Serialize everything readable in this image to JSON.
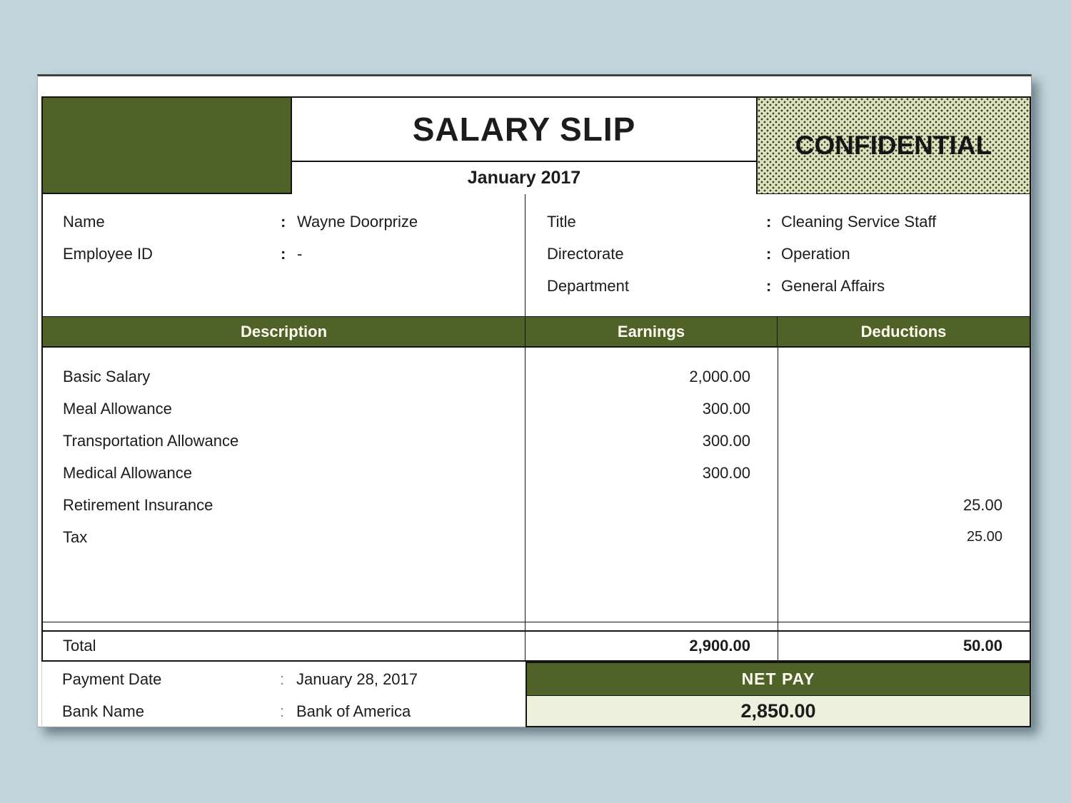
{
  "colors": {
    "canvas_bg": "#c1d6dc",
    "olive": "#4f6227",
    "confidential_bg": "#dce2bd",
    "netpay_value_bg": "#edf0dd",
    "header_text": "#fdfdf2",
    "ink": "#1c1c1c"
  },
  "header": {
    "title": "SALARY SLIP",
    "period": "January 2017",
    "confidential": "CONFIDENTIAL"
  },
  "employee": {
    "left": [
      {
        "label": "Name",
        "colon": ":",
        "value": "Wayne Doorprize"
      },
      {
        "label": "Employee ID",
        "colon": ":",
        "value": "-"
      }
    ],
    "right": [
      {
        "label": "Title",
        "colon": ":",
        "value": "Cleaning Service Staff"
      },
      {
        "label": "Directorate",
        "colon": ":",
        "value": "Operation"
      },
      {
        "label": "Department",
        "colon": ":",
        "value": "General Affairs"
      }
    ]
  },
  "table": {
    "headers": {
      "description": "Description",
      "earnings": "Earnings",
      "deductions": "Deductions"
    },
    "rows": [
      {
        "description": "Basic Salary",
        "earnings": "2,000.00",
        "deductions": ""
      },
      {
        "description": "Meal Allowance",
        "earnings": "300.00",
        "deductions": ""
      },
      {
        "description": "Transportation Allowance",
        "earnings": "300.00",
        "deductions": ""
      },
      {
        "description": "Medical Allowance",
        "earnings": "300.00",
        "deductions": ""
      },
      {
        "description": "Retirement Insurance",
        "earnings": "",
        "deductions": "25.00"
      },
      {
        "description": "Tax",
        "earnings": "",
        "deductions": "25.00"
      }
    ],
    "total": {
      "label": "Total",
      "earnings": "2,900.00",
      "deductions": "50.00"
    }
  },
  "footer": {
    "details": [
      {
        "label": "Payment Date",
        "colon": ":",
        "value": "January 28, 2017"
      },
      {
        "label": "Bank Name",
        "colon": ":",
        "value": "Bank of America"
      }
    ],
    "net_pay": {
      "label": "NET PAY",
      "value": "2,850.00"
    }
  }
}
